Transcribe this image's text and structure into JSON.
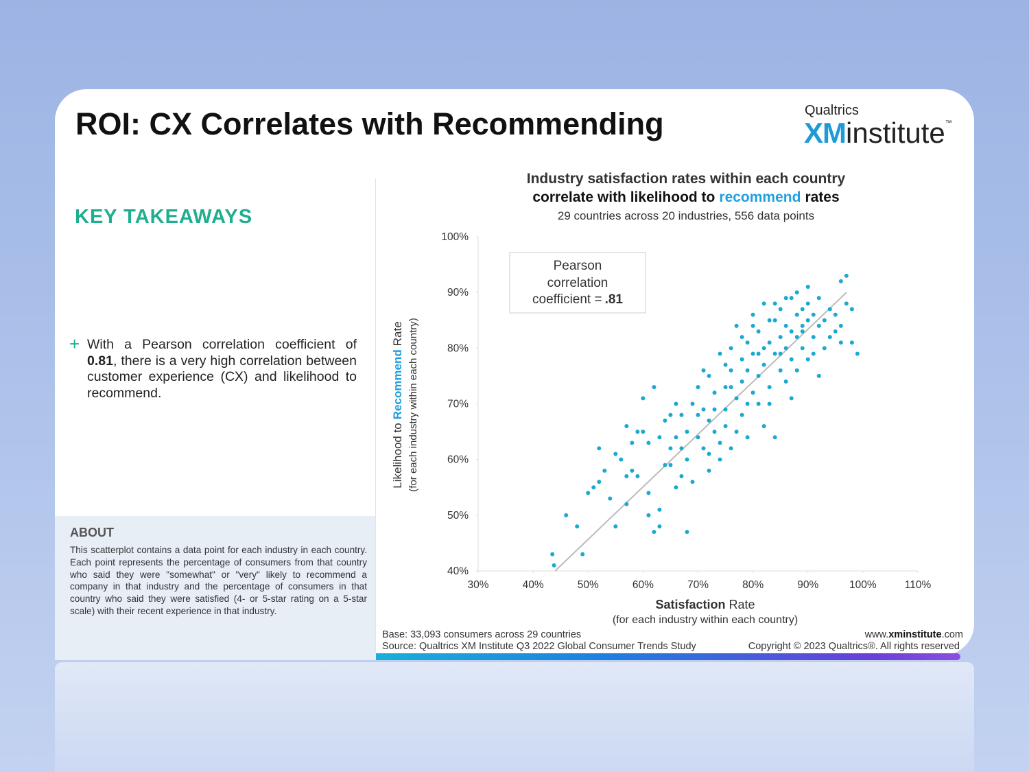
{
  "header": {
    "title": "ROI: CX Correlates with Recommending",
    "logo_top": "Qualtrics",
    "logo_xm": "XM",
    "logo_word": "institute",
    "logo_tm": "™"
  },
  "key_takeaways": {
    "heading": "KEY TAKEAWAYS",
    "item": [
      "With a Pearson correlation coefficient of",
      "0.81",
      ", there is a very high correlation between customer experience (CX) and likelihood to recommend."
    ]
  },
  "about": {
    "heading": "ABOUT",
    "text": "This scatterplot contains a data point for each industry in each country. Each point represents the percentage of consumers from that country who said they were \"somewhat\" or \"very\" likely to recommend a company in that industry and the percentage of consumers in that country who said they were satisfied (4- or 5-star rating on a 5-star scale) with their recent experience in that industry."
  },
  "footer": {
    "base": "Base: 33,093 consumers across 29 countries",
    "source": "Source: Qualtrics XM Institute Q3 2022 Global Consumer Trends Study",
    "site": [
      "www.",
      "xminstitute",
      ".com"
    ],
    "copyright": "Copyright © 2023 Qualtrics®. All rights reserved"
  },
  "chart_data": {
    "type": "scatter",
    "title": [
      "Industry satisfaction rates within each country",
      "correlate with likelihood to",
      "recommend",
      "rates"
    ],
    "subtitle": "29 countries across 20 industries, 556 data points",
    "x_label": [
      "Satisfaction",
      "Rate",
      "(for each industry within each country)"
    ],
    "y_label": [
      "Likelihood to",
      "Recommend",
      "Rate",
      "(for each industry within each country)"
    ],
    "annotation": [
      "Pearson",
      "correlation",
      "coefficient =",
      ".81"
    ],
    "color": "#19a9d1",
    "xlim": [
      30,
      110
    ],
    "ylim": [
      40,
      100
    ],
    "xticks": [
      {
        "value": 30,
        "label": "30%"
      },
      {
        "value": 40,
        "label": "40%"
      },
      {
        "value": 50,
        "label": "50%"
      },
      {
        "value": 60,
        "label": "60%"
      },
      {
        "value": 70,
        "label": "70%"
      },
      {
        "value": 80,
        "label": "80%"
      },
      {
        "value": 90,
        "label": "90%"
      },
      {
        "value": 100,
        "label": "100%"
      },
      {
        "value": 110,
        "label": "110%"
      }
    ],
    "yticks": [
      {
        "value": 40,
        "label": "40%"
      },
      {
        "value": 50,
        "label": "50%"
      },
      {
        "value": 60,
        "label": "60%"
      },
      {
        "value": 70,
        "label": "70%"
      },
      {
        "value": 80,
        "label": "80%"
      },
      {
        "value": 90,
        "label": "90%"
      },
      {
        "value": 100,
        "label": "100%"
      }
    ],
    "trendline": {
      "x": [
        44,
        97
      ],
      "y": [
        40,
        90
      ]
    },
    "x": [
      43.5,
      43.8,
      46,
      49,
      48,
      50,
      51,
      52,
      52,
      53,
      54,
      55,
      55,
      56,
      57,
      57,
      58,
      58,
      59,
      60,
      59,
      60,
      61,
      61,
      62,
      62,
      63,
      63,
      64,
      65,
      65,
      66,
      66,
      67,
      67,
      68,
      68,
      69,
      69,
      70,
      70,
      71,
      71,
      72,
      72,
      72,
      73,
      73,
      74,
      74,
      75,
      75,
      75,
      76,
      76,
      76,
      77,
      77,
      77,
      78,
      78,
      78,
      79,
      79,
      79,
      80,
      80,
      80,
      81,
      81,
      81,
      82,
      82,
      82,
      83,
      83,
      83,
      84,
      84,
      84,
      85,
      85,
      85,
      86,
      86,
      86,
      87,
      87,
      87,
      88,
      88,
      88,
      89,
      89,
      89,
      90,
      90,
      90,
      91,
      91,
      91,
      92,
      92,
      92,
      93,
      93,
      94,
      94,
      95,
      95,
      96,
      96,
      96,
      97,
      97,
      98,
      98,
      99,
      72,
      74,
      70,
      68,
      66,
      76,
      78,
      80,
      82,
      84,
      67,
      73,
      75,
      79,
      81,
      83,
      85,
      87,
      89,
      86,
      88,
      90,
      71,
      65,
      63,
      64,
      61,
      57
    ],
    "y": [
      43,
      41,
      50,
      43,
      48,
      54,
      55,
      56,
      62,
      58,
      53,
      61,
      48,
      60,
      52,
      66,
      63,
      58,
      65,
      65,
      57,
      71,
      54,
      50,
      73,
      47,
      51,
      48,
      59,
      62,
      59,
      55,
      64,
      57,
      68,
      47,
      60,
      56,
      70,
      64,
      73,
      62,
      76,
      58,
      67,
      61,
      69,
      72,
      63,
      60,
      66,
      69,
      77,
      62,
      73,
      80,
      71,
      84,
      65,
      74,
      68,
      78,
      76,
      64,
      81,
      72,
      79,
      86,
      70,
      75,
      83,
      66,
      77,
      80,
      73,
      85,
      70,
      79,
      88,
      64,
      76,
      82,
      87,
      74,
      80,
      84,
      78,
      89,
      71,
      82,
      86,
      76,
      80,
      87,
      84,
      78,
      85,
      88,
      82,
      86,
      79,
      84,
      89,
      75,
      85,
      80,
      87,
      82,
      86,
      83,
      84,
      81,
      92,
      93,
      88,
      87,
      81,
      79,
      75,
      79,
      68,
      65,
      70,
      76,
      82,
      84,
      88,
      85,
      62,
      65,
      73,
      70,
      79,
      81,
      79,
      83,
      83,
      89,
      90,
      91,
      69,
      68,
      64,
      67,
      63,
      57
    ]
  }
}
